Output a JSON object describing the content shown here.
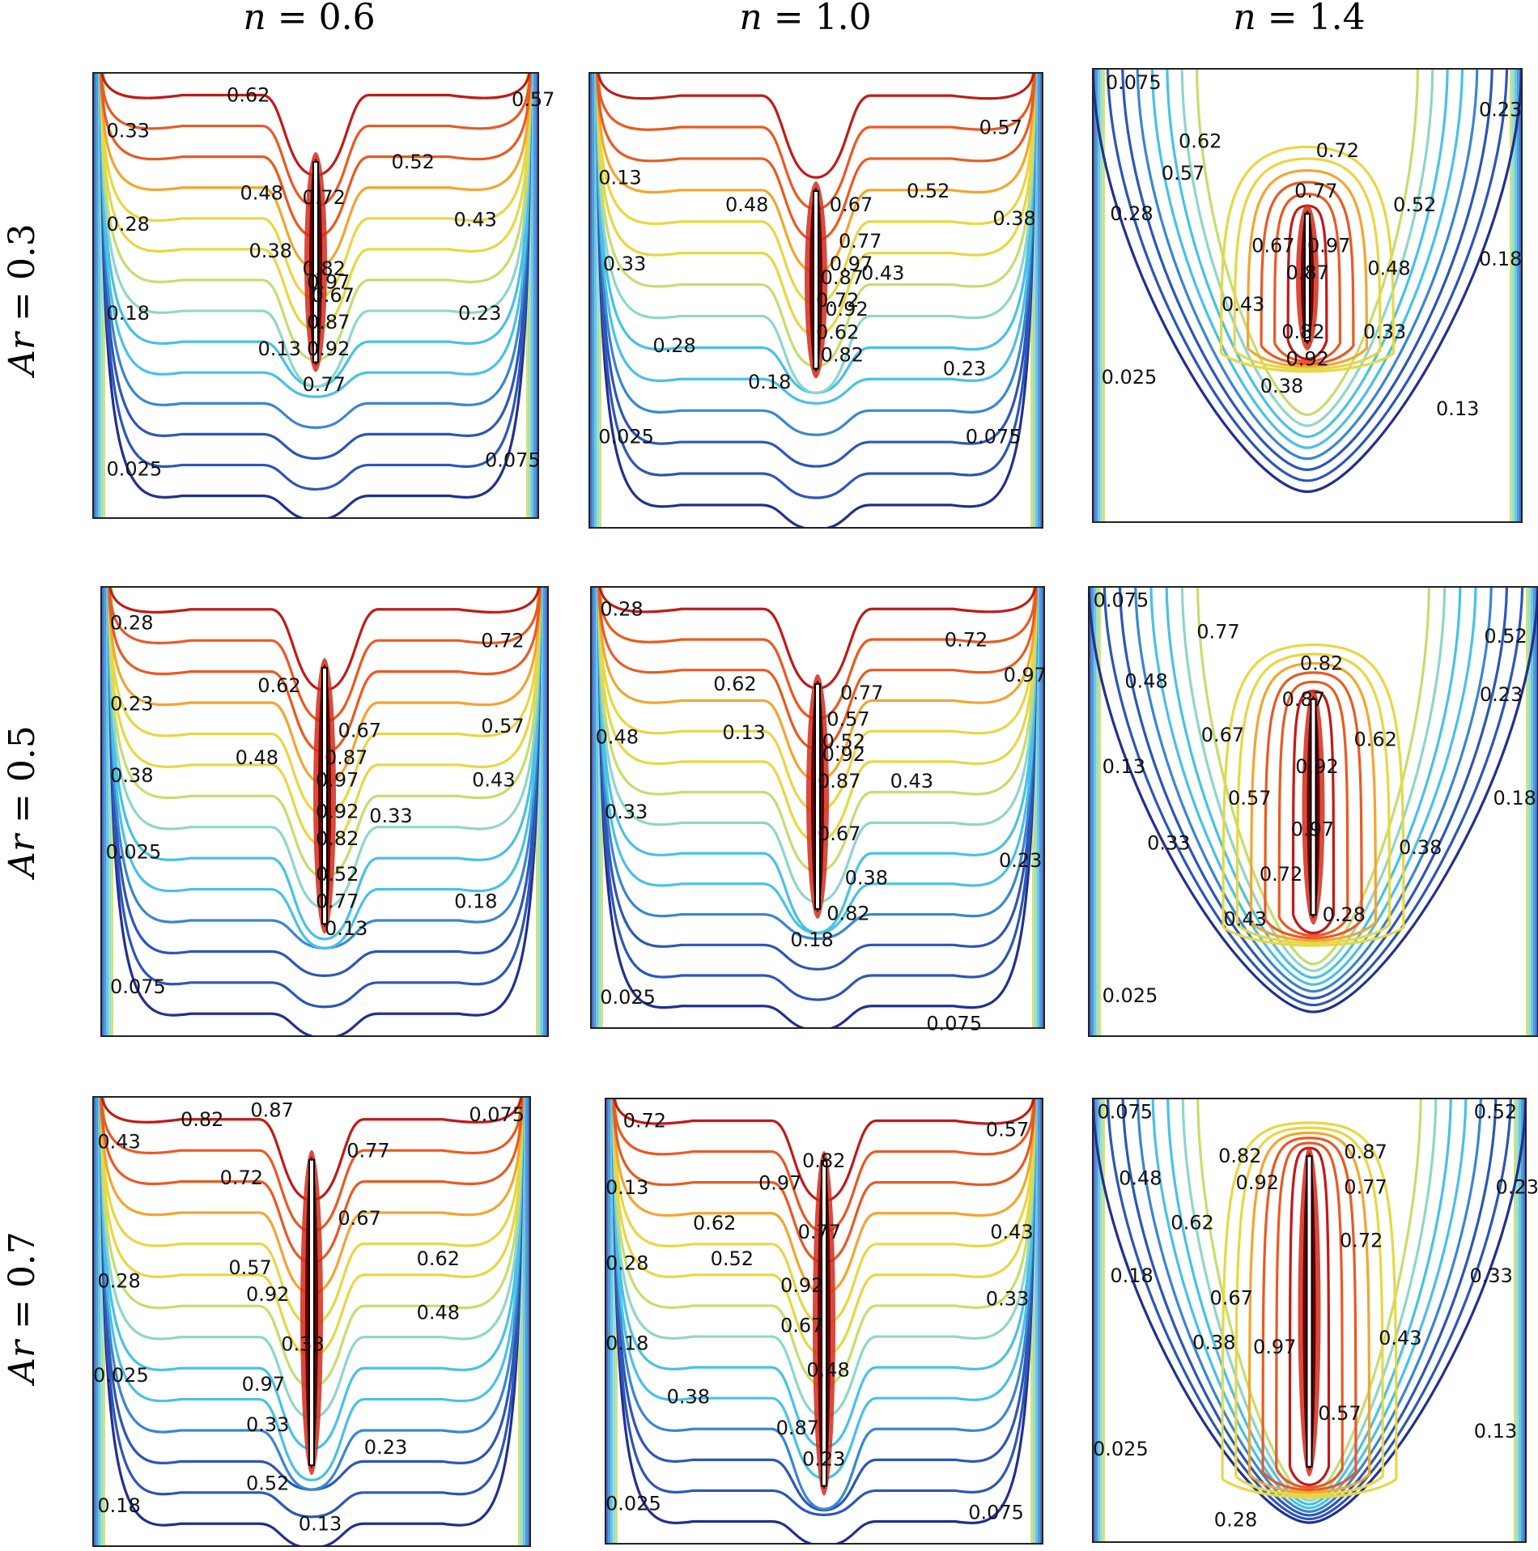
{
  "figure": {
    "columns": [
      {
        "var": "n",
        "value": "0.6"
      },
      {
        "var": "n",
        "value": "1.0"
      },
      {
        "var": "n",
        "value": "1.4"
      }
    ],
    "rows": [
      {
        "var": "Ar",
        "value": "0.3"
      },
      {
        "var": "Ar",
        "value": "0.5"
      },
      {
        "var": "Ar",
        "value": "0.7"
      }
    ],
    "colormap": [
      "#22308e",
      "#2d56b8",
      "#3a86d0",
      "#49c1e6",
      "#8fd6c8",
      "#c6dd6e",
      "#e7d744",
      "#f3a530",
      "#e85a24",
      "#c01a1a",
      "#7a0a0a"
    ],
    "panels": [
      {
        "row": 0,
        "col": 0,
        "labels": [
          "0.62",
          "0.57",
          "0.33",
          "0.52",
          "0.48",
          "0.72",
          "0.28",
          "0.43",
          "0.38",
          "0.82",
          "0.97",
          "0.67",
          "0.18",
          "0.87",
          "0.23",
          "0.13",
          "0.92",
          "0.77",
          "0.025",
          "0.075"
        ]
      },
      {
        "row": 0,
        "col": 1,
        "labels": [
          "0.57",
          "0.13",
          "0.52",
          "0.48",
          "0.67",
          "0.38",
          "0.77",
          "0.97",
          "0.33",
          "0.87",
          "0.43",
          "0.72",
          "0.92",
          "0.62",
          "0.28",
          "0.82",
          "0.23",
          "0.18",
          "0.025",
          "0.075"
        ]
      },
      {
        "row": 0,
        "col": 2,
        "labels": [
          "0.075",
          "0.23",
          "0.62",
          "0.72",
          "0.57",
          "0.77",
          "0.52",
          "0.28",
          "0.67",
          "0.97",
          "0.18",
          "0.87",
          "0.48",
          "0.43",
          "0.82",
          "0.33",
          "0.92",
          "0.025",
          "0.38",
          "0.13"
        ]
      },
      {
        "row": 1,
        "col": 0,
        "labels": [
          "0.28",
          "0.72",
          "0.62",
          "0.23",
          "0.67",
          "0.57",
          "0.48",
          "0.87",
          "0.38",
          "0.97",
          "0.43",
          "0.92",
          "0.33",
          "0.82",
          "0.025",
          "0.52",
          "0.77",
          "0.18",
          "0.13",
          "0.075"
        ]
      },
      {
        "row": 1,
        "col": 1,
        "labels": [
          "0.28",
          "0.72",
          "0.62",
          "0.77",
          "0.48",
          "0.13",
          "0.57",
          "0.97",
          "0.52",
          "0.92",
          "0.87",
          "0.43",
          "0.33",
          "0.67",
          "0.23",
          "0.38",
          "0.82",
          "0.18",
          "0.025",
          "0.075"
        ]
      },
      {
        "row": 1,
        "col": 2,
        "labels": [
          "0.075",
          "0.77",
          "0.52",
          "0.82",
          "0.48",
          "0.23",
          "0.87",
          "0.67",
          "0.62",
          "0.13",
          "0.92",
          "0.57",
          "0.18",
          "0.97",
          "0.33",
          "0.38",
          "0.72",
          "0.43",
          "0.28",
          "0.025"
        ]
      },
      {
        "row": 2,
        "col": 0,
        "labels": [
          "0.87",
          "0.82",
          "0.075",
          "0.43",
          "0.77",
          "0.72",
          "0.67",
          "0.57",
          "0.62",
          "0.28",
          "0.92",
          "0.48",
          "0.38",
          "0.025",
          "0.97",
          "0.33",
          "0.23",
          "0.52",
          "0.18",
          "0.13"
        ]
      },
      {
        "row": 2,
        "col": 1,
        "labels": [
          "0.72",
          "0.57",
          "0.82",
          "0.13",
          "0.97",
          "0.62",
          "0.77",
          "0.43",
          "0.52",
          "0.28",
          "0.92",
          "0.33",
          "0.67",
          "0.18",
          "0.48",
          "0.38",
          "0.87",
          "0.23",
          "0.025",
          "0.075"
        ]
      },
      {
        "row": 2,
        "col": 2,
        "labels": [
          "0.075",
          "0.52",
          "0.87",
          "0.82",
          "0.48",
          "0.92",
          "0.77",
          "0.23",
          "0.62",
          "0.72",
          "0.18",
          "0.33",
          "0.67",
          "0.38",
          "0.97",
          "0.43",
          "0.57",
          "0.13",
          "0.025",
          "0.28"
        ]
      }
    ]
  }
}
